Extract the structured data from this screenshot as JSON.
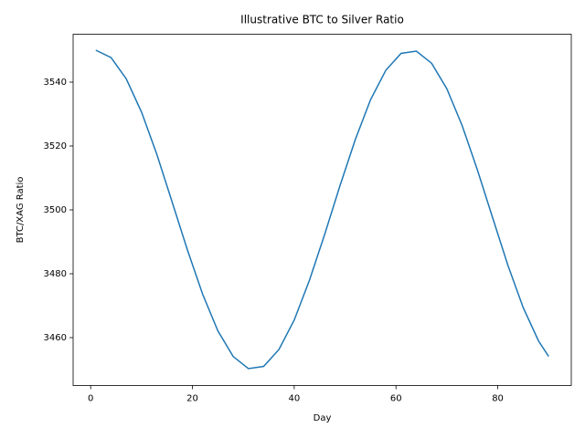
{
  "chart_data": {
    "type": "line",
    "title": "Illustrative BTC to Silver Ratio",
    "x_label": "Day",
    "y_label": "BTC/XAG Ratio",
    "x": [
      1,
      4,
      7,
      10,
      13,
      16,
      19,
      22,
      25,
      28,
      31,
      34,
      37,
      40,
      43,
      46,
      49,
      52,
      55,
      58,
      61,
      64,
      67,
      70,
      73,
      76,
      79,
      82,
      85,
      88,
      90
    ],
    "series": [
      {
        "name": "BTC/XAG Ratio",
        "color": "#1f77b4",
        "values": [
          3550,
          3547.7,
          3541.0,
          3530.6,
          3517.4,
          3502.5,
          3487.5,
          3473.6,
          3462.1,
          3454.1,
          3450.3,
          3451.0,
          3456.3,
          3465.5,
          3478.0,
          3492.4,
          3507.6,
          3522.0,
          3534.5,
          3543.7,
          3549.0,
          3549.7,
          3545.9,
          3537.9,
          3526.4,
          3512.5,
          3497.5,
          3482.6,
          3469.4,
          3459.0,
          3454.1
        ]
      }
    ],
    "xlim": [
      -3.45,
      94.45
    ],
    "xticks": [
      0,
      20,
      40,
      60,
      80
    ],
    "ylim": [
      3445,
      3555
    ],
    "yticks": [
      3460,
      3480,
      3500,
      3520,
      3540
    ]
  }
}
